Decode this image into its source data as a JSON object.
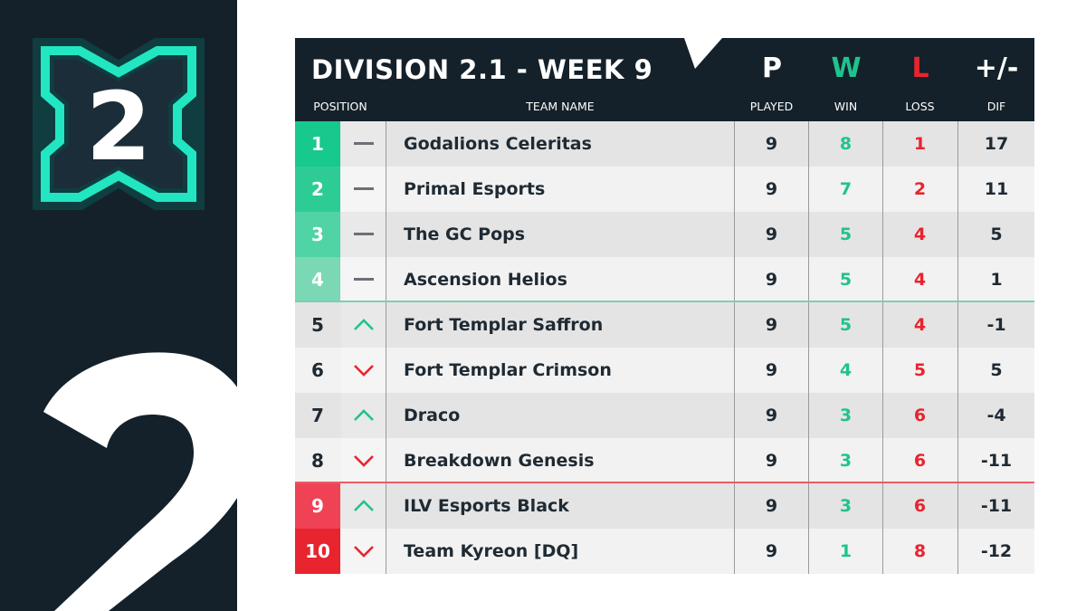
{
  "logo": {
    "number": "2"
  },
  "header": {
    "title": "DIVISION 2.1 - WEEK 9",
    "columns": {
      "position": "POSITION",
      "team": "TEAM NAME",
      "played": {
        "letter": "P",
        "label": "PLAYED"
      },
      "win": {
        "letter": "W",
        "label": "WIN"
      },
      "loss": {
        "letter": "L",
        "label": "LOSS"
      },
      "dif": {
        "letter": "+/-",
        "label": "DIF"
      }
    }
  },
  "colors": {
    "dark": "#14212a",
    "accent_cyan": "#21e6c1",
    "win_green": "#1fc38e",
    "loss_red": "#e8242e",
    "row_light": "#f2f2f2",
    "row_dark": "#e4e4e4"
  },
  "rows": [
    {
      "position": "1",
      "trend": "same",
      "team": "Godalions Celeritas",
      "played": "9",
      "win": "8",
      "loss": "1",
      "dif": "17",
      "pos_color": "#17c98d"
    },
    {
      "position": "2",
      "trend": "same",
      "team": "Primal Esports",
      "played": "9",
      "win": "7",
      "loss": "2",
      "dif": "11",
      "pos_color": "#2ecc95"
    },
    {
      "position": "3",
      "trend": "same",
      "team": "The GC Pops",
      "played": "9",
      "win": "5",
      "loss": "4",
      "dif": "5",
      "pos_color": "#50d3a5"
    },
    {
      "position": "4",
      "trend": "same",
      "team": "Ascension Helios",
      "played": "9",
      "win": "5",
      "loss": "4",
      "dif": "1",
      "pos_color": "#7bd8b5"
    },
    {
      "position": "5",
      "trend": "up",
      "team": "Fort Templar Saffron",
      "played": "9",
      "win": "5",
      "loss": "4",
      "dif": "-1",
      "pos_color": ""
    },
    {
      "position": "6",
      "trend": "down",
      "team": "Fort Templar Crimson",
      "played": "9",
      "win": "4",
      "loss": "5",
      "dif": "5",
      "pos_color": ""
    },
    {
      "position": "7",
      "trend": "up",
      "team": "Draco",
      "played": "9",
      "win": "3",
      "loss": "6",
      "dif": "-4",
      "pos_color": ""
    },
    {
      "position": "8",
      "trend": "down",
      "team": "Breakdown Genesis",
      "played": "9",
      "win": "3",
      "loss": "6",
      "dif": "-11",
      "pos_color": ""
    },
    {
      "position": "9",
      "trend": "up",
      "team": "ILV Esports Black",
      "played": "9",
      "win": "3",
      "loss": "6",
      "dif": "-11",
      "pos_color": "#f04255"
    },
    {
      "position": "10",
      "trend": "down",
      "team": "Team Kyreon [DQ]",
      "played": "9",
      "win": "1",
      "loss": "8",
      "dif": "-12",
      "pos_color": "#e8242e"
    }
  ]
}
